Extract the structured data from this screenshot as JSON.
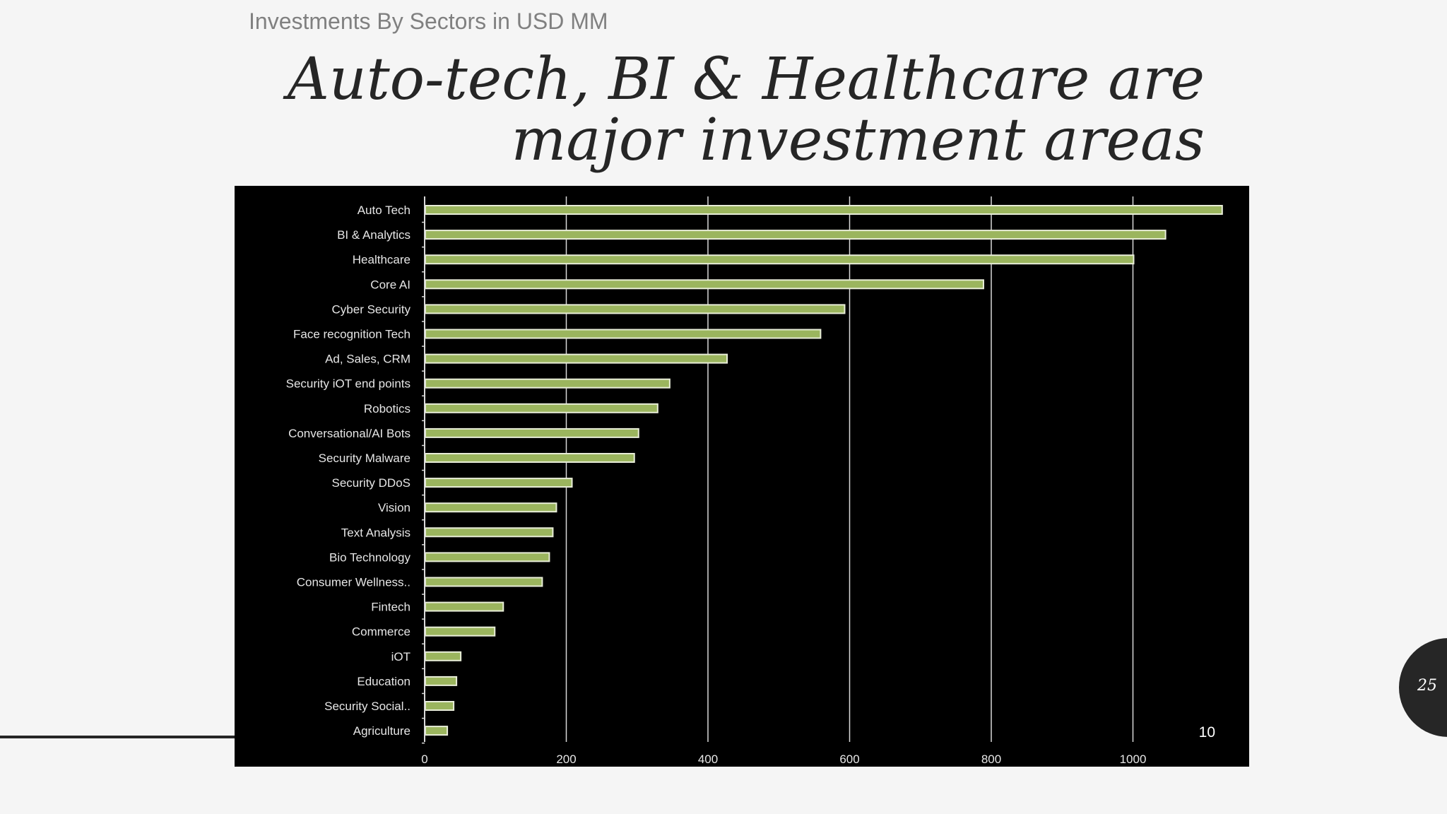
{
  "slide": {
    "subtitle": "Investments By Sectors in USD MM",
    "headline_line1": "Auto-tech,  BI & Healthcare are",
    "headline_line2": "major investment areas",
    "page_number": "25",
    "chart_corner_label": "10"
  },
  "colors": {
    "bar_fill": "#9bb55e",
    "bar_stroke": "#e8edd8",
    "grid": "#d9d9d9",
    "chart_background": "#000000",
    "label_text": "#e6e6e6"
  },
  "chart_data": {
    "type": "bar",
    "orientation": "horizontal",
    "categories": [
      "Auto Tech",
      "BI & Analytics",
      "Healthcare",
      "Core AI",
      "Cyber Security",
      "Face recognition Tech",
      "Ad, Sales, CRM",
      "Security iOT end points",
      "Robotics",
      "Conversational/AI Bots",
      "Security Malware",
      "Security DDoS",
      "Vision",
      "Text Analysis",
      "Bio Technology",
      "Consumer Wellness..",
      "Fintech",
      "Commerce",
      "iOT",
      "Education",
      "Security Social..",
      "Agriculture"
    ],
    "values": [
      1125,
      1045,
      1000,
      788,
      592,
      558,
      426,
      345,
      328,
      301,
      295,
      207,
      185,
      180,
      175,
      165,
      110,
      98,
      50,
      44,
      40,
      31
    ],
    "xlim": [
      0,
      1130
    ],
    "xticks": [
      "0",
      "200",
      "400",
      "600",
      "800",
      "1000"
    ],
    "xtick_values": [
      0,
      200,
      400,
      600,
      800,
      1000
    ],
    "grid": true,
    "title": "",
    "xlabel": "",
    "ylabel": ""
  }
}
